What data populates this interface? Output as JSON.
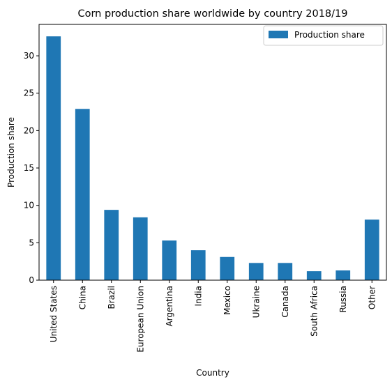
{
  "chart_data": {
    "type": "bar",
    "title": "Corn production share worldwide by country 2018/19",
    "xlabel": "Country",
    "ylabel": "Production share",
    "categories": [
      "United States",
      "China",
      "Brazil",
      "European Union",
      "Argentina",
      "India",
      "Mexico",
      "Ukraine",
      "Canada",
      "South Africa",
      "Russia",
      "Other"
    ],
    "series": [
      {
        "name": "Production share",
        "values": [
          32.6,
          22.9,
          9.4,
          8.4,
          5.3,
          4.0,
          3.1,
          2.3,
          2.3,
          1.2,
          1.3,
          8.1
        ]
      }
    ],
    "ylim": [
      0,
      34.2
    ],
    "yticks": [
      "0",
      "5",
      "10",
      "15",
      "20",
      "25",
      "30"
    ],
    "grid": false,
    "legend_position": "top-right",
    "colors": {
      "bar": "#1f77b4",
      "axes": "#000000",
      "legend_border": "#cccccc"
    }
  }
}
